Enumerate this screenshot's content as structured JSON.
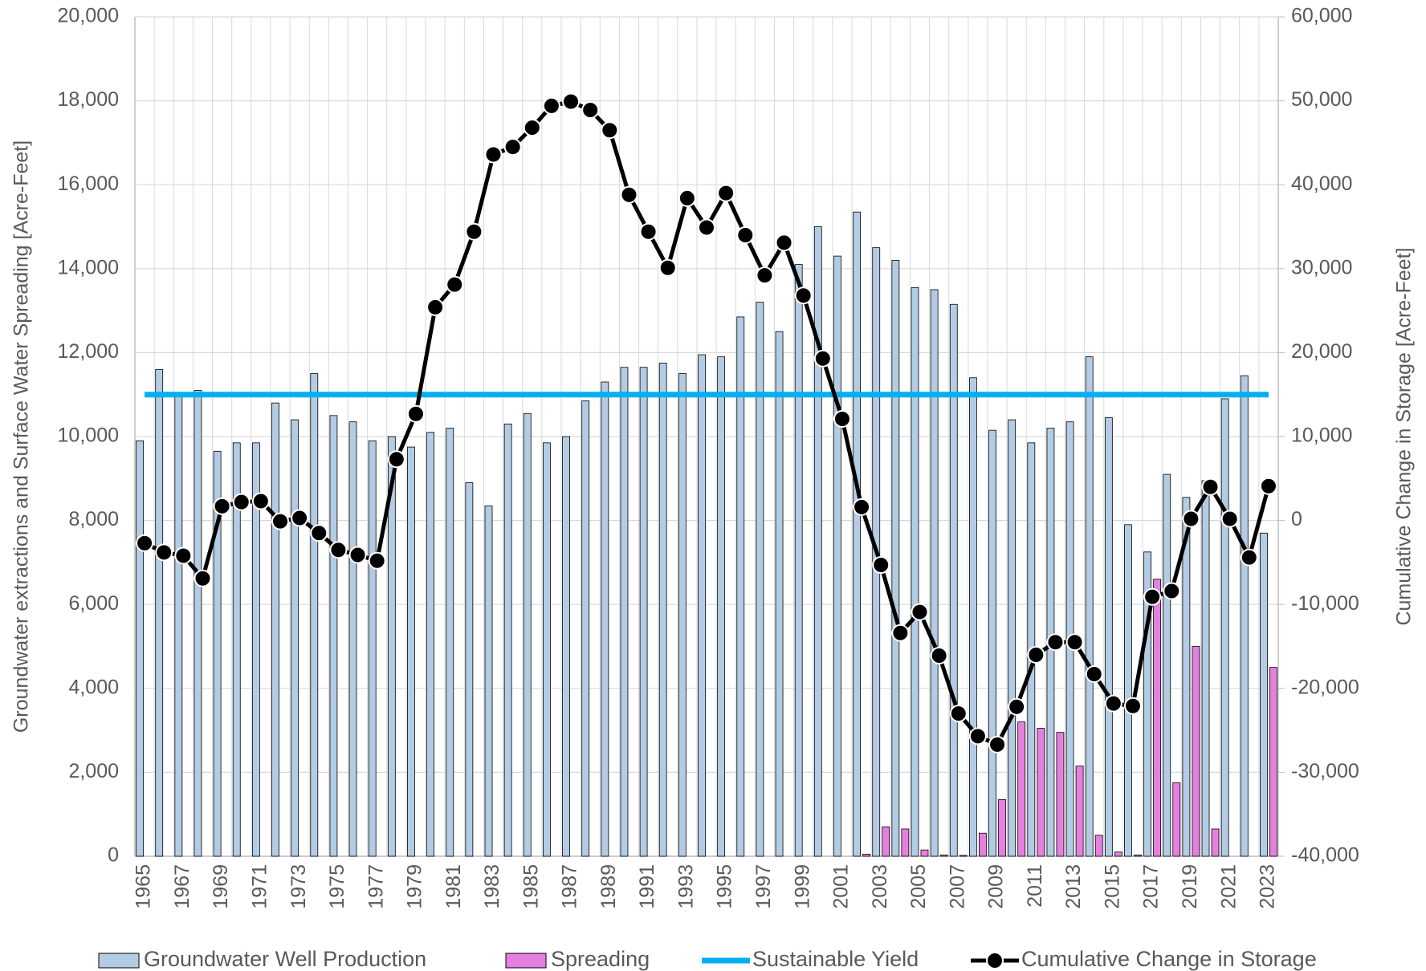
{
  "chart_data": {
    "type": "bar",
    "y_label": "Groundwater extractions and Surface Water Spreading [Acre-Feet]",
    "y2_label": "Cumulative Change in Storage [Acre-Feet]",
    "categories": [
      "1965",
      null,
      "1967",
      null,
      "1969",
      null,
      "1971",
      null,
      "1973",
      null,
      "1975",
      null,
      "1977",
      null,
      "1979",
      null,
      "1981",
      null,
      "1983",
      null,
      "1985",
      null,
      "1987",
      null,
      "1989",
      null,
      "1991",
      null,
      "1993",
      null,
      "1995",
      null,
      "1997",
      null,
      "1999",
      null,
      "2001",
      null,
      "2003",
      null,
      "2005",
      null,
      "2007",
      null,
      "2009",
      null,
      "2011",
      null,
      "2013",
      null,
      "2015",
      null,
      "2017",
      null,
      "2019",
      null,
      "2021",
      null,
      "2023"
    ],
    "series": [
      {
        "name": "Groundwater Well Production",
        "type": "bar",
        "color": "#b4cbe4",
        "values": [
          9900,
          11600,
          11050,
          11100,
          9650,
          9850,
          9850,
          10800,
          10400,
          11500,
          10500,
          10350,
          9900,
          10000,
          9750,
          10100,
          10200,
          8900,
          8350,
          10300,
          10550,
          9850,
          10000,
          10850,
          11300,
          11650,
          11650,
          11750,
          11500,
          11950,
          11900,
          12850,
          13200,
          12500,
          14100,
          15000,
          14300,
          15350,
          14500,
          14200,
          13550,
          13500,
          13150,
          11400,
          10150,
          10400,
          9850,
          10200,
          10350,
          11900,
          10450,
          7900,
          7250,
          9100,
          8550,
          8950,
          10900,
          11450,
          7700
        ]
      },
      {
        "name": "Spreading",
        "type": "bar",
        "color": "#e57fe0",
        "values": [
          0,
          0,
          0,
          0,
          0,
          0,
          0,
          0,
          0,
          0,
          0,
          0,
          0,
          0,
          0,
          0,
          0,
          0,
          0,
          0,
          0,
          0,
          0,
          0,
          0,
          0,
          0,
          0,
          0,
          0,
          0,
          0,
          0,
          0,
          0,
          0,
          0,
          50,
          700,
          650,
          150,
          30,
          20,
          550,
          1350,
          3200,
          3050,
          2950,
          2150,
          500,
          100,
          30,
          6600,
          1750,
          5000,
          650,
          0,
          0,
          4500
        ]
      },
      {
        "name": "Sustainable Yield",
        "type": "line",
        "color": "#00b0f0",
        "markers": false,
        "values": [
          11000,
          11000,
          11000,
          11000,
          11000,
          11000,
          11000,
          11000,
          11000,
          11000,
          11000,
          11000,
          11000,
          11000,
          11000,
          11000,
          11000,
          11000,
          11000,
          11000,
          11000,
          11000,
          11000,
          11000,
          11000,
          11000,
          11000,
          11000,
          11000,
          11000,
          11000,
          11000,
          11000,
          11000,
          11000,
          11000,
          11000,
          11000,
          11000,
          11000,
          11000,
          11000,
          11000,
          11000,
          11000,
          11000,
          11000,
          11000,
          11000,
          11000,
          11000,
          11000,
          11000,
          11000,
          11000,
          11000,
          11000,
          11000,
          11000
        ]
      },
      {
        "name": "Cumulative Change in Storage",
        "type": "line",
        "axis": "y2",
        "color": "#000000",
        "markers": true,
        "values": [
          -2700,
          -3800,
          -4200,
          -6900,
          1700,
          2200,
          2300,
          -100,
          300,
          -1500,
          -3500,
          -4100,
          -4800,
          7300,
          12700,
          25400,
          28100,
          34400,
          43600,
          44500,
          46800,
          49400,
          49900,
          48900,
          46500,
          38800,
          34400,
          30100,
          38400,
          34900,
          39000,
          34000,
          29200,
          33100,
          26800,
          19300,
          12100,
          1600,
          -5300,
          -13400,
          -10900,
          -16100,
          -23000,
          -25700,
          -26700,
          -22200,
          -16000,
          -14500,
          -14500,
          -18300,
          -21800,
          -22100,
          -9100,
          -8400,
          200,
          4000,
          200,
          -4400,
          4100
        ]
      }
    ],
    "ylim": [
      0,
      20000
    ],
    "yticks": [
      0,
      {
        "value": 2000,
        "label": "2,000"
      },
      {
        "value": 4000,
        "label": "4,000"
      },
      {
        "value": 6000,
        "label": "6,000"
      },
      {
        "value": 8000,
        "label": "8,000"
      },
      {
        "value": 10000,
        "label": "10,000"
      },
      {
        "value": 12000,
        "label": "12,000"
      },
      {
        "value": 14000,
        "label": "14,000"
      },
      {
        "value": 16000,
        "label": "16,000"
      },
      {
        "value": 18000,
        "label": "18,000"
      },
      {
        "value": 20000,
        "label": "20,000"
      }
    ],
    "y2lim": [
      -40000,
      60000
    ],
    "y2ticks": [
      {
        "value": -40000,
        "label": "-40,000"
      },
      {
        "value": -30000,
        "label": "-30,000"
      },
      {
        "value": -20000,
        "label": "-20,000"
      },
      {
        "value": -10000,
        "label": "-10,000"
      },
      0,
      {
        "value": 10000,
        "label": "10,000"
      },
      {
        "value": 20000,
        "label": "20,000"
      },
      {
        "value": 30000,
        "label": "30,000"
      },
      {
        "value": 40000,
        "label": "40,000"
      },
      {
        "value": 50000,
        "label": "50,000"
      },
      {
        "value": 60000,
        "label": "60,000"
      }
    ],
    "grid": true,
    "legend": "bottom"
  }
}
